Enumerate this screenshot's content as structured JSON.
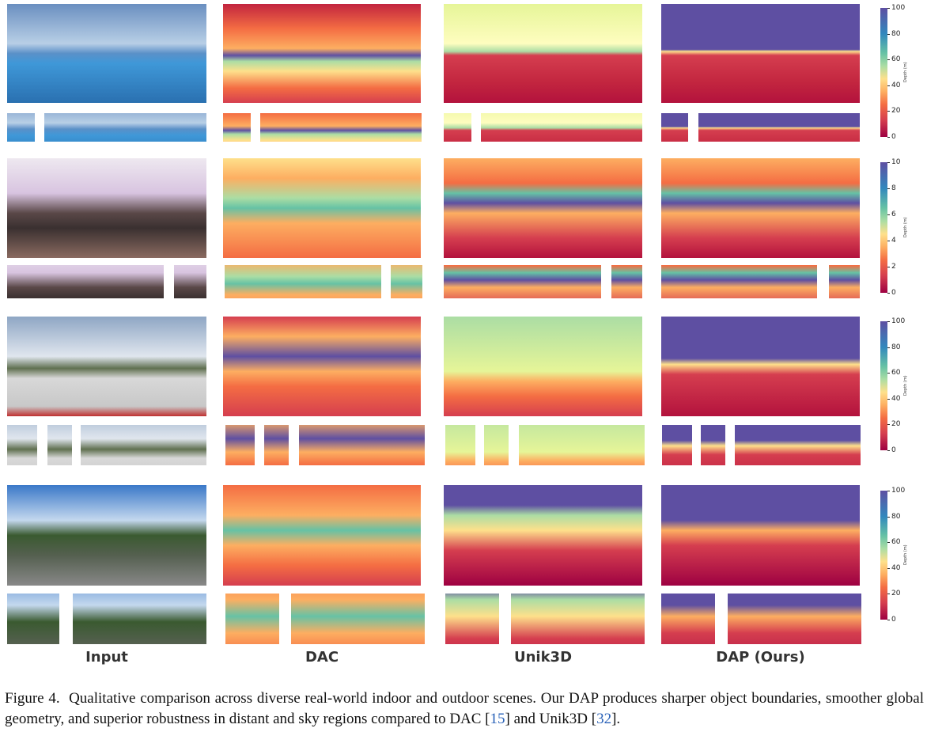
{
  "figure": {
    "columns": [
      "Input",
      "DAC",
      "Unik3D",
      "DAP (Ours)"
    ],
    "rows": [
      {
        "colorbar": {
          "label": "Depth (m)",
          "ticks": [
            0,
            20,
            40,
            60,
            80,
            100
          ]
        }
      },
      {
        "colorbar": {
          "label": "Depth (m)",
          "ticks": [
            0,
            2,
            4,
            6,
            8,
            10
          ]
        }
      },
      {
        "colorbar": {
          "label": "Depth (m)",
          "ticks": [
            0,
            20,
            40,
            60,
            80,
            100
          ]
        }
      },
      {
        "colorbar": {
          "label": "Depth (m)",
          "ticks": [
            0,
            20,
            40,
            60,
            80,
            100
          ]
        }
      }
    ],
    "caption": {
      "label": "Figure 4.",
      "text_1": "Qualitative comparison across diverse real-world indoor and outdoor scenes. Our DAP produces sharper object boundaries, smoother global geometry, and superior robustness in distant and sky regions compared to DAC [",
      "ref_1": "15",
      "text_2": "] and Unik3D [",
      "ref_2": "32",
      "text_3": "]."
    }
  }
}
